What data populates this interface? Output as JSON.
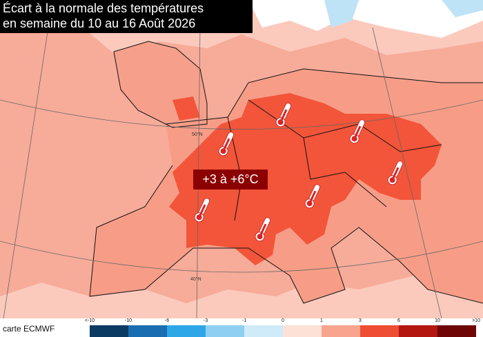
{
  "header": {
    "title_line1": "Écart à la normale des températures",
    "title_line2": "en semaine du 10 au 16 Août 2026"
  },
  "map": {
    "anomaly_label": "+3 à +6°C",
    "latitude_labels": [
      "50°N",
      "40°N"
    ]
  },
  "footer": {
    "source": "carte ECMWF"
  },
  "legend": {
    "labels": [
      "<-10",
      "-10",
      "-6",
      "-3",
      "-1",
      "0",
      "1",
      "3",
      "6",
      "10",
      ">10"
    ],
    "colors": [
      "#0b3a63",
      "#1a6db0",
      "#2ea7e8",
      "#8fd0f2",
      "#cfeaf8",
      "#fde0d6",
      "#f9a48e",
      "#f04e32",
      "#b3170f",
      "#6e0606"
    ]
  }
}
